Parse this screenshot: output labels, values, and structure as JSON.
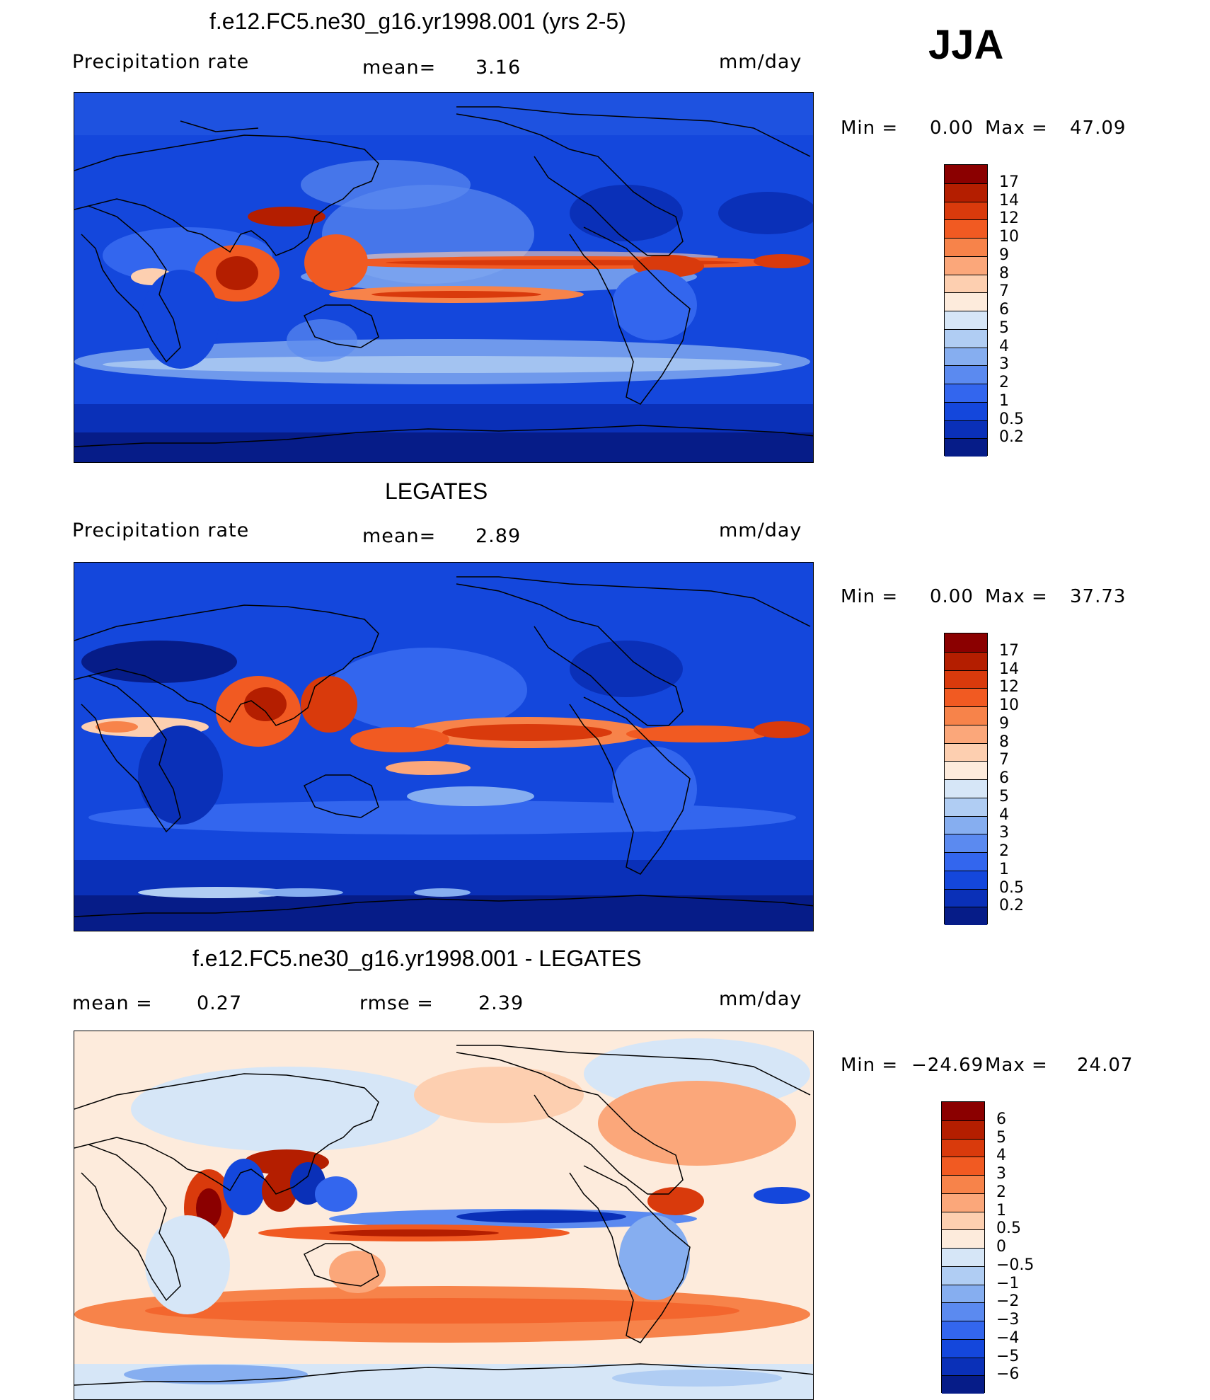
{
  "season": "JJA",
  "panels": [
    {
      "id": "model",
      "title": "f.e12.FC5.ne30_g16.yr1998.001 (yrs 2-5)",
      "left_label": "Precipitation  rate",
      "mid_label": "mean=",
      "mid_value": "3.16",
      "units": "mm/day",
      "min_label": "Min  =",
      "min_value": "0.00",
      "max_label": "Max  =",
      "max_value": "47.09",
      "colorbar": {
        "labels": [
          "17",
          "14",
          "12",
          "10",
          "9",
          "8",
          "7",
          "6",
          "5",
          "4",
          "3",
          "2",
          "1",
          "0.5",
          "0.2"
        ],
        "colors": [
          "#8b0000",
          "#b41e00",
          "#d93a0c",
          "#f15a22",
          "#f7834a",
          "#fba77a",
          "#fdcfb0",
          "#fdebdc",
          "#d6e6f7",
          "#b0cdf3",
          "#86aef0",
          "#5b8af0",
          "#3366ee",
          "#1447dc",
          "#0a30b8",
          "#061c88"
        ]
      }
    },
    {
      "id": "obs",
      "title": "LEGATES",
      "left_label": "Precipitation  rate",
      "mid_label": "mean=",
      "mid_value": "2.89",
      "units": "mm/day",
      "min_label": "Min  =",
      "min_value": "0.00",
      "max_label": "Max  =",
      "max_value": "37.73",
      "colorbar": {
        "labels": [
          "17",
          "14",
          "12",
          "10",
          "9",
          "8",
          "7",
          "6",
          "5",
          "4",
          "3",
          "2",
          "1",
          "0.5",
          "0.2"
        ],
        "colors": [
          "#8b0000",
          "#b41e00",
          "#d93a0c",
          "#f15a22",
          "#f7834a",
          "#fba77a",
          "#fdcfb0",
          "#fdebdc",
          "#d6e6f7",
          "#b0cdf3",
          "#86aef0",
          "#5b8af0",
          "#3366ee",
          "#1447dc",
          "#0a30b8",
          "#061c88"
        ]
      }
    },
    {
      "id": "diff",
      "title": "f.e12.FC5.ne30_g16.yr1998.001 - LEGATES",
      "left_label": "mean  =",
      "left_value": "0.27",
      "mid_label": "rmse  =",
      "mid_value": "2.39",
      "units": "mm/day",
      "min_label": "Min  =",
      "min_value": "−24.69",
      "max_label": "Max  =",
      "max_value": "24.07",
      "colorbar": {
        "labels": [
          "6",
          "5",
          "4",
          "3",
          "2",
          "1",
          "0.5",
          "0",
          "−0.5",
          "−1",
          "−2",
          "−3",
          "−4",
          "−5",
          "−6"
        ],
        "colors": [
          "#8b0000",
          "#b41e00",
          "#d93a0c",
          "#f15a22",
          "#f7834a",
          "#fba77a",
          "#fdcfb0",
          "#fdebdc",
          "#d6e6f7",
          "#b0cdf3",
          "#86aef0",
          "#5b8af0",
          "#3366ee",
          "#1447dc",
          "#0a30b8",
          "#061c88"
        ]
      }
    }
  ]
}
